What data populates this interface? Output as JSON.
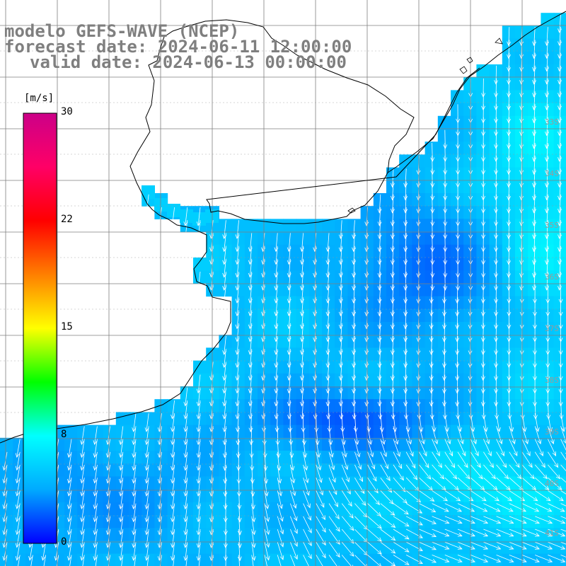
{
  "title": {
    "line1": "modelo GEFS-WAVE (NCEP)",
    "line2": "forecast date: 2024-06-11 12:00:00",
    "line3": "valid date: 2024-06-13 00:00:00"
  },
  "colorbar": {
    "unit": "[m/s]",
    "ticks": [
      "30",
      "22",
      "15",
      "8",
      "0"
    ],
    "tick_values": [
      30,
      22,
      15,
      8,
      0
    ],
    "min": 0,
    "max": 30,
    "colors": [
      "#0000ff",
      "#00aaff",
      "#00ffff",
      "#00ff00",
      "#ffff00",
      "#ff7f00",
      "#ff0000",
      "#ff0066",
      "#cc0088"
    ]
  },
  "field": {
    "variable": "wind speed",
    "units": "m/s",
    "typical_speed_range": [
      4,
      8
    ],
    "arrow_color": "#ffffff",
    "land_color": "#ffffff",
    "grid_color": "#7f7f7f"
  },
  "right_labels": [
    "33S",
    "34S",
    "35S",
    "36S",
    "37S",
    "38S",
    "39S",
    "40S",
    "41S"
  ]
}
